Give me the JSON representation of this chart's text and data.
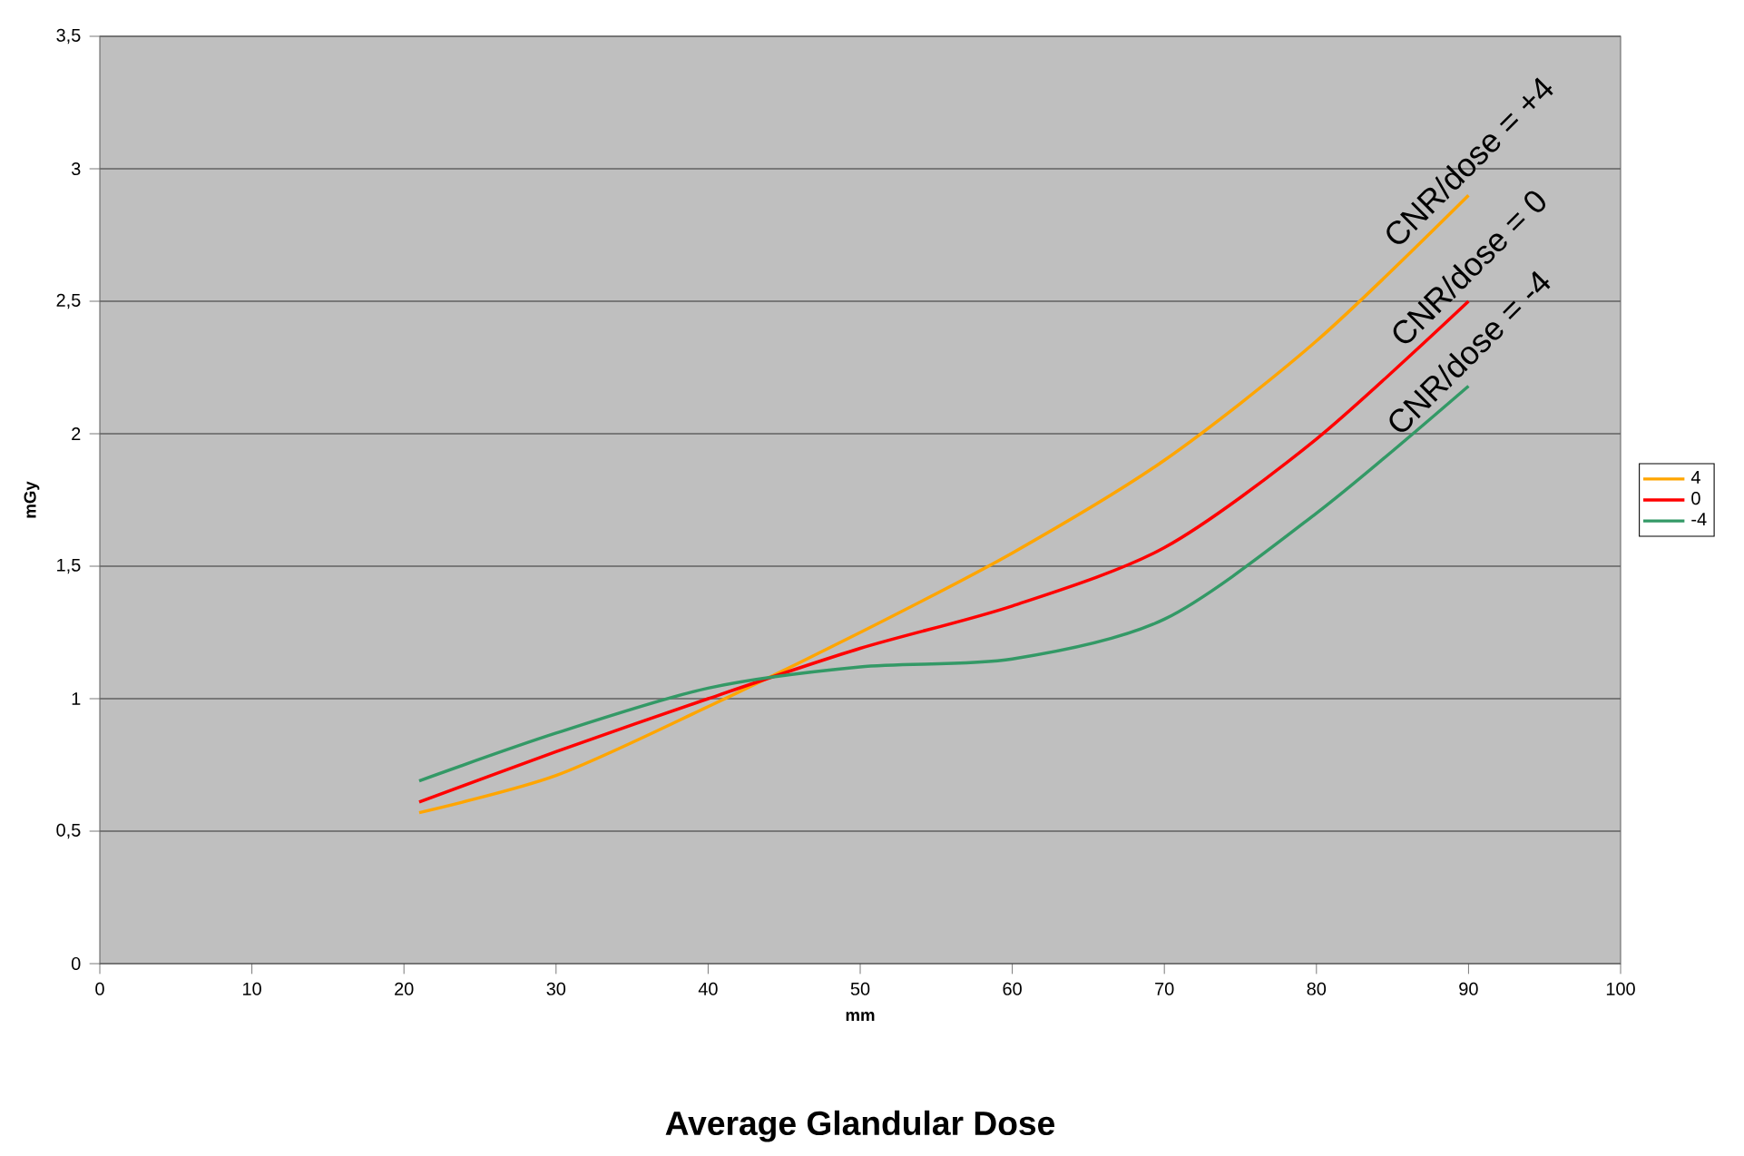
{
  "chart_data": {
    "type": "line",
    "title": "Average Glandular Dose",
    "xlabel": "mm",
    "ylabel": "mGy",
    "x": [
      21,
      30,
      40,
      50,
      60,
      70,
      80,
      90
    ],
    "series": [
      {
        "name": "4",
        "color": "#ffa500",
        "values": [
          0.57,
          0.71,
          0.97,
          1.25,
          1.55,
          1.9,
          2.35,
          2.9
        ]
      },
      {
        "name": "0",
        "color": "#ff0000",
        "values": [
          0.61,
          0.8,
          1.0,
          1.19,
          1.35,
          1.57,
          1.98,
          2.5
        ]
      },
      {
        "name": "-4",
        "color": "#339966",
        "values": [
          0.69,
          0.87,
          1.04,
          1.12,
          1.15,
          1.3,
          1.7,
          2.18
        ]
      }
    ],
    "xlim": [
      0,
      100
    ],
    "xticks": [
      0,
      10,
      20,
      30,
      40,
      50,
      60,
      70,
      80,
      90,
      100
    ],
    "ylim": [
      0,
      3.5
    ],
    "yticks": [
      0,
      {
        "value": 0.5,
        "label": "0,5"
      },
      1,
      {
        "value": 1.5,
        "label": "1,5"
      },
      2,
      {
        "value": 2.5,
        "label": "2,5"
      },
      3,
      {
        "value": 3.5,
        "label": "3,5"
      }
    ],
    "grid": "y",
    "legend": "right",
    "marker": "none",
    "line_style": "solid",
    "annotations": [
      "CNR/dose = +4",
      "CNR/dose = 0",
      "CNR/dose = -4"
    ]
  }
}
